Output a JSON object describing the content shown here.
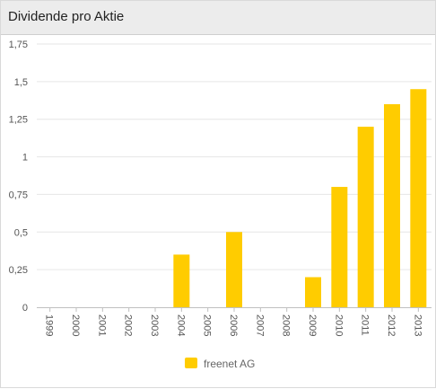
{
  "header": {
    "title": "Dividende pro Aktie"
  },
  "colors": {
    "bar": "#ffcc00",
    "grid": "#e6e6e6",
    "axis": "#c0c0c0",
    "tick_text": "#555555",
    "legend_text": "#666666"
  },
  "chart_data": {
    "type": "bar",
    "title": "Dividende pro Aktie",
    "categories": [
      "1999",
      "2000",
      "2001",
      "2002",
      "2003",
      "2004",
      "2005",
      "2006",
      "2007",
      "2008",
      "2009",
      "2010",
      "2011",
      "2012",
      "2013"
    ],
    "series": [
      {
        "name": "freenet AG",
        "values": [
          0,
          0,
          0,
          0,
          0,
          0.35,
          0,
          0.5,
          0,
          0,
          0.2,
          0.8,
          1.2,
          1.35,
          1.45
        ]
      }
    ],
    "y_ticks": [
      "0",
      "0,25",
      "0,5",
      "0,75",
      "1",
      "1,25",
      "1,5",
      "1,75"
    ],
    "ylim": [
      0,
      1.75
    ],
    "grid": true,
    "legend": "bottom-center"
  }
}
